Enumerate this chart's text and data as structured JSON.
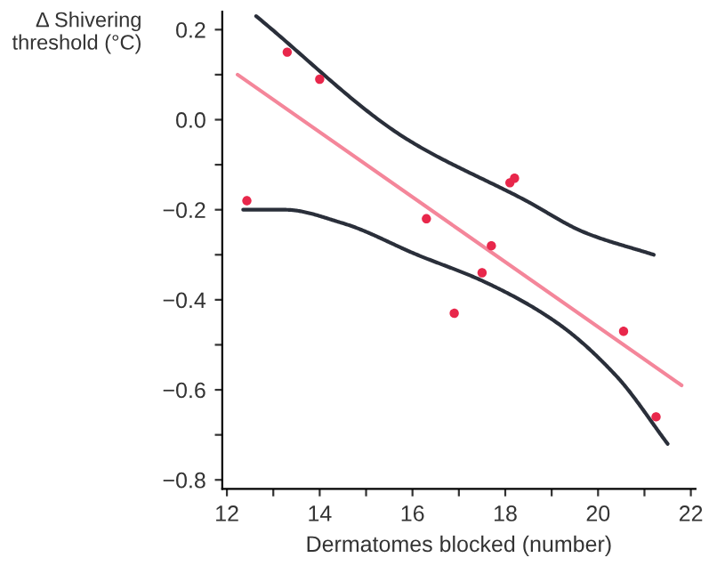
{
  "chart_data": {
    "type": "scatter",
    "xlabel": "Dermatomes blocked (number)",
    "ylabel": "Δ Shivering\nthreshold (°C)",
    "xlim": [
      11.9,
      22.1
    ],
    "ylim": [
      -0.82,
      0.24
    ],
    "xticks": [
      12,
      {
        "value": 13,
        "label": null
      },
      14,
      {
        "value": 15,
        "label": null
      },
      16,
      {
        "value": 17,
        "label": null
      },
      18,
      {
        "value": 19,
        "label": null
      },
      20,
      {
        "value": 21,
        "label": null
      },
      22
    ],
    "yticks": [
      {
        "value": -0.8,
        "label": "−0.8"
      },
      {
        "value": -0.7,
        "label": null
      },
      {
        "value": -0.6,
        "label": "−0.6"
      },
      {
        "value": -0.5,
        "label": null
      },
      {
        "value": -0.4,
        "label": "−0.4"
      },
      {
        "value": -0.3,
        "label": null
      },
      {
        "value": -0.2,
        "label": "−0.2"
      },
      {
        "value": -0.1,
        "label": null
      },
      {
        "value": 0.0,
        "label": "0.0"
      },
      {
        "value": 0.1,
        "label": null
      },
      {
        "value": 0.2,
        "label": "0.2"
      }
    ],
    "grid": false,
    "series": [
      {
        "marker": "circle",
        "color": "#e8274b",
        "x": [
          12.43,
          13.3,
          14.0,
          16.3,
          16.9,
          17.5,
          17.7,
          18.1,
          18.2,
          20.55,
          21.25
        ],
        "values": [
          -0.18,
          0.15,
          0.09,
          -0.22,
          -0.43,
          -0.34,
          -0.28,
          -0.14,
          -0.13,
          -0.47,
          -0.66
        ]
      },
      {
        "type": "line",
        "marker": "none",
        "color": "#f4869a",
        "x": [
          12.23,
          21.8
        ],
        "values": [
          0.1,
          -0.59
        ]
      },
      {
        "type": "line",
        "marker": "none",
        "color": "#2a2f3a",
        "x": [
          12.63,
          15.83,
          18.45,
          19.7,
          21.2
        ],
        "values": [
          0.23,
          -0.04,
          -0.18,
          -0.25,
          -0.3
        ]
      },
      {
        "type": "line",
        "marker": "none",
        "color": "#2a2f3a",
        "x": [
          12.35,
          13.25,
          14.5,
          16.1,
          17.55,
          19.1,
          20.4,
          21.5
        ],
        "values": [
          -0.2,
          -0.2,
          -0.23,
          -0.3,
          -0.36,
          -0.45,
          -0.57,
          -0.72
        ]
      }
    ]
  }
}
